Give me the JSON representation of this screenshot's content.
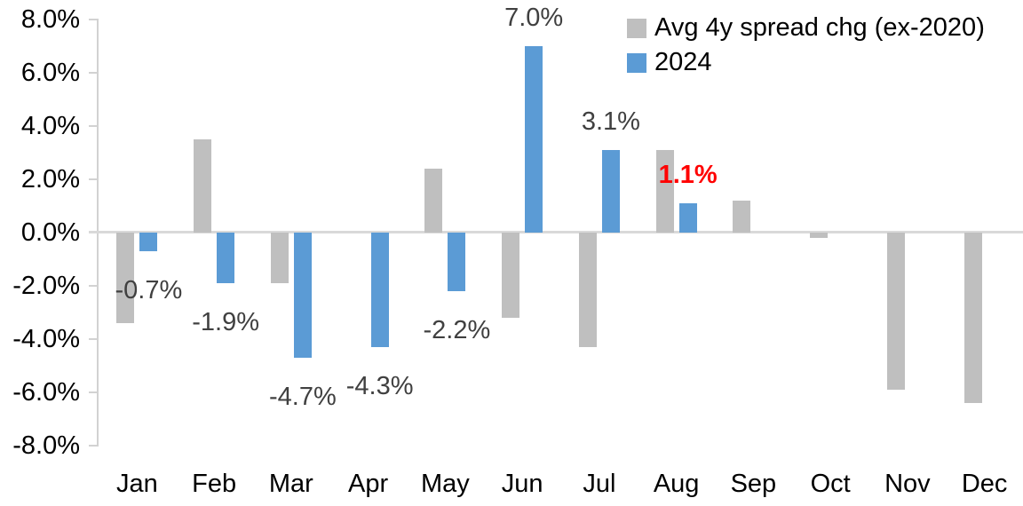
{
  "chart_data": {
    "type": "bar",
    "title": "",
    "xlabel": "",
    "ylabel": "",
    "categories": [
      "Jan",
      "Feb",
      "Mar",
      "Apr",
      "May",
      "Jun",
      "Jul",
      "Aug",
      "Sep",
      "Oct",
      "Nov",
      "Dec"
    ],
    "series": [
      {
        "name": "Avg 4y spread chg (ex-2020)",
        "color": "#bfbfbf",
        "values": [
          -3.4,
          3.5,
          -1.9,
          0.0,
          2.4,
          -3.2,
          -4.3,
          3.1,
          1.2,
          -0.2,
          -5.9,
          -6.4
        ]
      },
      {
        "name": "2024",
        "color": "#5b9bd5",
        "values": [
          -0.7,
          -1.9,
          -4.7,
          -4.3,
          -2.2,
          7.0,
          3.1,
          1.1,
          null,
          null,
          null,
          null
        ]
      }
    ],
    "data_labels": [
      {
        "month_index": 0,
        "text": "-0.7%",
        "color": "#404040",
        "bold": false
      },
      {
        "month_index": 1,
        "text": "-1.9%",
        "color": "#404040",
        "bold": false
      },
      {
        "month_index": 2,
        "text": "-4.7%",
        "color": "#404040",
        "bold": false
      },
      {
        "month_index": 3,
        "text": "-4.3%",
        "color": "#404040",
        "bold": false
      },
      {
        "month_index": 4,
        "text": "-2.2%",
        "color": "#404040",
        "bold": false
      },
      {
        "month_index": 5,
        "text": "7.0%",
        "color": "#404040",
        "bold": false
      },
      {
        "month_index": 6,
        "text": "3.1%",
        "color": "#404040",
        "bold": false
      },
      {
        "month_index": 7,
        "text": "1.1%",
        "color": "#ff0000",
        "bold": true
      }
    ],
    "yticks": [
      "8.0%",
      "6.0%",
      "4.0%",
      "2.0%",
      "0.0%",
      "-2.0%",
      "-4.0%",
      "-6.0%",
      "-8.0%"
    ],
    "ytick_values": [
      8,
      6,
      4,
      2,
      0,
      -2,
      -4,
      -6,
      -8
    ],
    "ylim": [
      -8,
      8
    ],
    "grid": false,
    "legend_position": "top-right",
    "accent_colors": {
      "gray_series": "#bfbfbf",
      "blue_series": "#5b9bd5",
      "label_default": "#404040",
      "label_highlight": "#ff0000",
      "axis_line": "#d2d2d2"
    }
  }
}
